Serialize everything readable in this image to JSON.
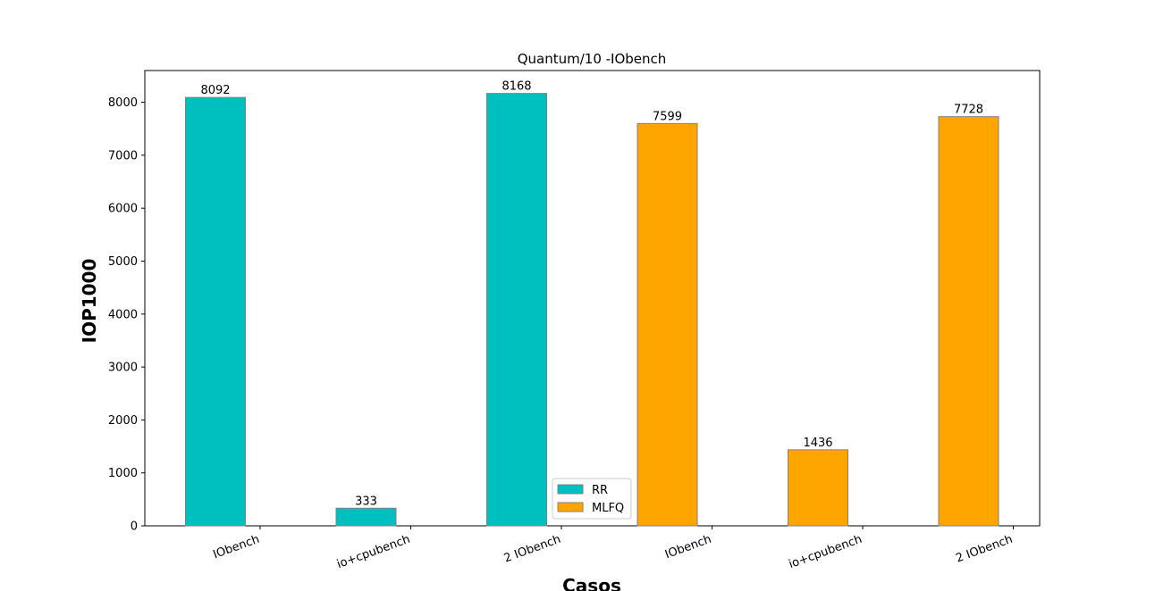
{
  "chart_data": {
    "type": "bar",
    "title": "Quantum/10 -IObench",
    "xlabel": "Casos",
    "ylabel": "IOP1000",
    "ylim": [
      0,
      8600
    ],
    "yticks": [
      0,
      1000,
      2000,
      3000,
      4000,
      5000,
      6000,
      7000,
      8000
    ],
    "categories": [
      "IObench",
      "io+cpubench",
      "2 IObench",
      "IObench",
      "io+cpubench",
      "2 IObench"
    ],
    "series": [
      {
        "name": "RR",
        "color": "#00bfbf",
        "values": [
          8092,
          333,
          8168,
          null,
          null,
          null
        ]
      },
      {
        "name": "MLFQ",
        "color": "#ffa500",
        "values": [
          null,
          null,
          null,
          7599,
          1436,
          7728
        ]
      }
    ],
    "legend_placement": "lower-center",
    "grid": false
  }
}
